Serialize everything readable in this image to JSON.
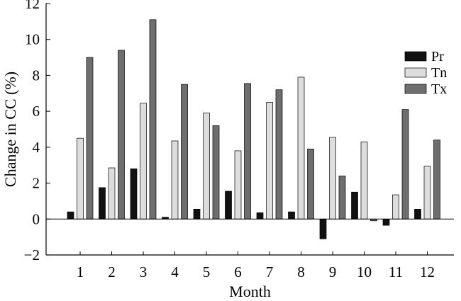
{
  "chart_data": {
    "type": "bar",
    "title": "",
    "xlabel": "Month",
    "ylabel": "Change in CC (%)",
    "ylim": [
      -2,
      12
    ],
    "yticks": [
      -2,
      0,
      2,
      4,
      6,
      8,
      10,
      12
    ],
    "ytick_labels": [
      "−2",
      "0",
      "2",
      "4",
      "6",
      "8",
      "10",
      "12"
    ],
    "categories": [
      "1",
      "2",
      "3",
      "4",
      "5",
      "6",
      "7",
      "8",
      "9",
      "10",
      "11",
      "12"
    ],
    "legend_position": "top-right",
    "grid": false,
    "series": [
      {
        "name": "Pr",
        "color": "#111111",
        "values": [
          0.4,
          1.75,
          2.8,
          0.1,
          0.55,
          1.55,
          0.35,
          0.4,
          -1.1,
          1.5,
          -0.35,
          0.55
        ]
      },
      {
        "name": "Tn",
        "color": "#dddddd",
        "values": [
          4.5,
          2.85,
          6.45,
          4.35,
          5.9,
          3.8,
          6.5,
          7.9,
          4.55,
          4.3,
          1.35,
          2.95
        ]
      },
      {
        "name": "Tx",
        "color": "#6e6e6e",
        "values": [
          9.0,
          9.4,
          11.1,
          7.5,
          5.2,
          7.55,
          7.2,
          3.9,
          2.4,
          -0.1,
          6.1,
          4.4
        ]
      }
    ]
  }
}
